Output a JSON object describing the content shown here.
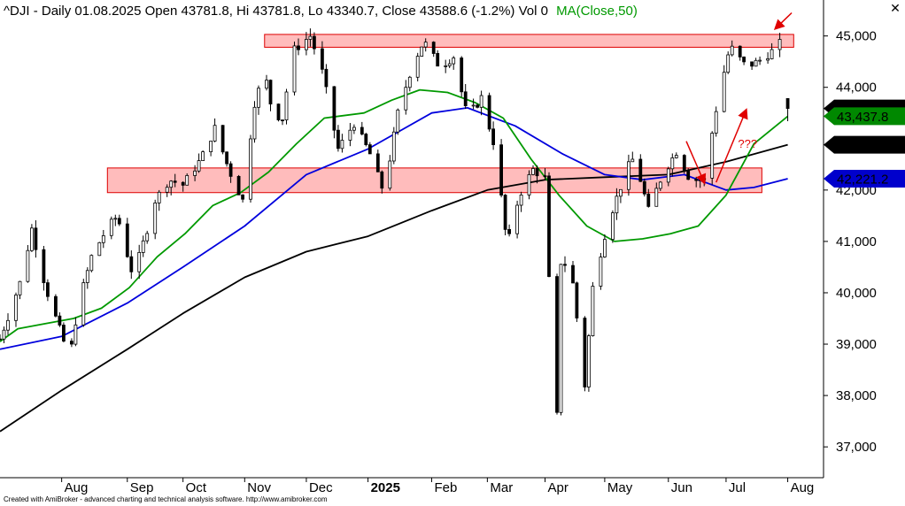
{
  "header": {
    "symbol_text": "^DJI - Daily 01.08.2025 Open 43781.8, Hi 43781.8, Lo 43340.7, Close 43588.6 (-1.2%) Vol 0",
    "ma_text": "MA(Close,50)"
  },
  "close_icon": "close-icon",
  "footer": "Created with AmiBroker - advanced charting and technical analysis software. http://www.amibroker.com",
  "colors": {
    "price": "#000000",
    "ma_short": "#009900",
    "ma_mid": "#0000dd",
    "ma_long": "#000000",
    "zone_fill": "#ffbcbc",
    "zone_stroke": "#dd0000",
    "annotation": "#e00000",
    "price_tag": "#000000",
    "ma_short_tag": "#008800",
    "ma_mid_tag": "#0000cc"
  },
  "chart_data": {
    "type": "candlestick",
    "title": "^DJI - Daily 01.08.2025 Open 43781.8, Hi 43781.8, Lo 43340.7, Close 43588.6 (-1.2%) Vol 0",
    "ylim": [
      36400,
      45700
    ],
    "grid": false,
    "y_ticks": [
      {
        "value": 45000,
        "label": "45,000"
      },
      {
        "value": 44000,
        "label": "44,000"
      },
      {
        "value": 42000,
        "label": "42,000"
      },
      {
        "value": 41000,
        "label": "41,000"
      },
      {
        "value": 40000,
        "label": "40,000"
      },
      {
        "value": 39000,
        "label": "39,000"
      },
      {
        "value": 38000,
        "label": "38,000"
      },
      {
        "value": 37000,
        "label": "37,000"
      }
    ],
    "x_ticks": [
      {
        "date": "2024-08-01",
        "label": "Aug",
        "bold": false
      },
      {
        "date": "2024-09-03",
        "label": "Sep",
        "bold": false
      },
      {
        "date": "2024-10-01",
        "label": "Oct",
        "bold": false
      },
      {
        "date": "2024-11-01",
        "label": "Nov",
        "bold": false
      },
      {
        "date": "2024-12-02",
        "label": "Dec",
        "bold": false
      },
      {
        "date": "2025-01-02",
        "label": "2025",
        "bold": true
      },
      {
        "date": "2025-02-03",
        "label": "Feb",
        "bold": false
      },
      {
        "date": "2025-03-03",
        "label": "Mar",
        "bold": false
      },
      {
        "date": "2025-04-01",
        "label": "Apr",
        "bold": false
      },
      {
        "date": "2025-05-01",
        "label": "May",
        "bold": false
      },
      {
        "date": "2025-06-02",
        "label": "Jun",
        "bold": false
      },
      {
        "date": "2025-07-01",
        "label": "Jul",
        "bold": false
      },
      {
        "date": "2025-08-01",
        "label": "Aug",
        "bold": false
      }
    ],
    "x_range": [
      "2024-07-01",
      "2025-08-19"
    ],
    "price_path": [
      [
        "2024-07-01",
        39100
      ],
      [
        "2024-07-12",
        40300
      ],
      [
        "2024-07-17",
        41250
      ],
      [
        "2024-07-24",
        40100
      ],
      [
        "2024-08-05",
        38700
      ],
      [
        "2024-08-09",
        39700
      ],
      [
        "2024-08-16",
        40700
      ],
      [
        "2024-08-23",
        41200
      ],
      [
        "2024-08-29",
        41500
      ],
      [
        "2024-09-06",
        40300
      ],
      [
        "2024-09-12",
        41100
      ],
      [
        "2024-09-17",
        41800
      ],
      [
        "2024-09-24",
        42200
      ],
      [
        "2024-10-01",
        42100
      ],
      [
        "2024-10-10",
        42600
      ],
      [
        "2024-10-17",
        43200
      ],
      [
        "2024-10-24",
        42400
      ],
      [
        "2024-10-31",
        41800
      ],
      [
        "2024-11-06",
        43700
      ],
      [
        "2024-11-11",
        44300
      ],
      [
        "2024-11-15",
        43500
      ],
      [
        "2024-11-20",
        43400
      ],
      [
        "2024-11-25",
        44700
      ],
      [
        "2024-12-04",
        45000
      ],
      [
        "2024-12-10",
        44300
      ],
      [
        "2024-12-18",
        42800
      ],
      [
        "2024-12-26",
        43300
      ],
      [
        "2025-01-03",
        42700
      ],
      [
        "2025-01-10",
        41950
      ],
      [
        "2025-01-17",
        43500
      ],
      [
        "2025-01-24",
        44400
      ],
      [
        "2025-01-30",
        44900
      ],
      [
        "2025-02-07",
        44400
      ],
      [
        "2025-02-14",
        44600
      ],
      [
        "2025-02-21",
        43400
      ],
      [
        "2025-02-28",
        43800
      ],
      [
        "2025-03-07",
        42800
      ],
      [
        "2025-03-13",
        40900
      ],
      [
        "2025-03-19",
        41900
      ],
      [
        "2025-03-26",
        42400
      ],
      [
        "2025-04-02",
        42200
      ],
      [
        "2025-04-04",
        38300
      ],
      [
        "2025-04-07",
        37600
      ],
      [
        "2025-04-09",
        40600
      ],
      [
        "2025-04-14",
        40500
      ],
      [
        "2025-04-21",
        38200
      ],
      [
        "2025-04-25",
        40100
      ],
      [
        "2025-05-02",
        41300
      ],
      [
        "2025-05-12",
        42400
      ],
      [
        "2025-05-16",
        42650
      ],
      [
        "2025-05-23",
        41600
      ],
      [
        "2025-05-30",
        42300
      ],
      [
        "2025-06-06",
        42750
      ],
      [
        "2025-06-13",
        42200
      ],
      [
        "2025-06-20",
        42200
      ],
      [
        "2025-06-27",
        43800
      ],
      [
        "2025-07-03",
        44800
      ],
      [
        "2025-07-11",
        44400
      ],
      [
        "2025-07-17",
        44500
      ],
      [
        "2025-07-24",
        44700
      ],
      [
        "2025-07-28",
        44850
      ],
      [
        "2025-07-31",
        44100
      ],
      [
        "2025-08-01",
        43588.6
      ]
    ],
    "candle_dates": {
      "start": "2024-07-01",
      "end": "2025-08-01",
      "interval_days": 2,
      "gap": [
        "2025-07-31",
        "2025-07-31"
      ]
    },
    "last_candle": {
      "date": "2025-08-01",
      "open": 43781.8,
      "high": 43781.8,
      "low": 43340.7,
      "close": 43588.6
    },
    "series": [
      {
        "name": "MA(Close,50)",
        "color": "#009900",
        "points": [
          [
            "2024-07-01",
            39050
          ],
          [
            "2024-07-10",
            39300
          ],
          [
            "2024-07-24",
            39400
          ],
          [
            "2024-08-07",
            39500
          ],
          [
            "2024-08-21",
            39700
          ],
          [
            "2024-09-04",
            40100
          ],
          [
            "2024-09-18",
            40700
          ],
          [
            "2024-10-02",
            41150
          ],
          [
            "2024-10-16",
            41700
          ],
          [
            "2024-10-30",
            41950
          ],
          [
            "2024-11-13",
            42350
          ],
          [
            "2024-11-27",
            42900
          ],
          [
            "2024-12-11",
            43400
          ],
          [
            "2024-12-31",
            43500
          ],
          [
            "2025-01-14",
            43750
          ],
          [
            "2025-01-28",
            43950
          ],
          [
            "2025-02-11",
            43900
          ],
          [
            "2025-02-25",
            43700
          ],
          [
            "2025-03-11",
            43400
          ],
          [
            "2025-03-25",
            42600
          ],
          [
            "2025-04-08",
            41900
          ],
          [
            "2025-04-22",
            41300
          ],
          [
            "2025-05-06",
            41000
          ],
          [
            "2025-05-20",
            41050
          ],
          [
            "2025-06-03",
            41150
          ],
          [
            "2025-06-17",
            41300
          ],
          [
            "2025-07-01",
            41900
          ],
          [
            "2025-07-15",
            42900
          ],
          [
            "2025-08-01",
            43437.8
          ]
        ]
      },
      {
        "name": "",
        "color": "#0000dd",
        "points": [
          [
            "2024-07-01",
            38900
          ],
          [
            "2024-08-01",
            39150
          ],
          [
            "2024-09-03",
            39800
          ],
          [
            "2024-10-01",
            40500
          ],
          [
            "2024-11-01",
            41300
          ],
          [
            "2024-12-02",
            42300
          ],
          [
            "2025-01-02",
            42800
          ],
          [
            "2025-02-03",
            43500
          ],
          [
            "2025-02-21",
            43600
          ],
          [
            "2025-03-17",
            43250
          ],
          [
            "2025-04-10",
            42700
          ],
          [
            "2025-05-01",
            42300
          ],
          [
            "2025-05-20",
            42200
          ],
          [
            "2025-06-10",
            42300
          ],
          [
            "2025-07-01",
            42000
          ],
          [
            "2025-07-15",
            42050
          ],
          [
            "2025-08-01",
            42221.2
          ]
        ]
      },
      {
        "name": "",
        "color": "#000000",
        "points": [
          [
            "2024-07-01",
            37300
          ],
          [
            "2024-08-01",
            38100
          ],
          [
            "2024-09-03",
            38900
          ],
          [
            "2024-10-01",
            39600
          ],
          [
            "2024-11-01",
            40300
          ],
          [
            "2024-12-02",
            40800
          ],
          [
            "2025-01-02",
            41100
          ],
          [
            "2025-02-03",
            41600
          ],
          [
            "2025-03-03",
            42000
          ],
          [
            "2025-04-01",
            42200
          ],
          [
            "2025-05-01",
            42250
          ],
          [
            "2025-06-02",
            42300
          ],
          [
            "2025-07-01",
            42550
          ],
          [
            "2025-08-01",
            42882.4
          ]
        ]
      }
    ],
    "zones": [
      {
        "name": "upper-resistance-zone",
        "x0": "2024-11-11",
        "x1": "2025-08-04",
        "y0": 44780,
        "y1": 45030
      },
      {
        "name": "lower-support-zone",
        "x0": "2024-08-24",
        "x1": "2025-07-19",
        "y0": 41950,
        "y1": 42430
      }
    ],
    "annotations": {
      "question_marks": {
        "text": "???",
        "date": "2025-07-07",
        "value": 42820
      },
      "arrows": [
        {
          "name": "down-arrow-top",
          "from": [
            "2025-08-03",
            45450
          ],
          "to": [
            "2025-07-26",
            45150
          ]
        },
        {
          "name": "down-arrow-pullback",
          "from": [
            "2025-06-11",
            42950
          ],
          "to": [
            "2025-06-20",
            42150
          ]
        },
        {
          "name": "up-arrow-bounce",
          "from": [
            "2025-06-26",
            42150
          ],
          "to": [
            "2025-07-11",
            43550
          ]
        }
      ]
    },
    "price_labels": [
      {
        "name": "price-tag-close",
        "text": "43,588.6",
        "value": 43588.6,
        "color": "#000000"
      },
      {
        "name": "price-tag-ma50",
        "text": "43,437.8",
        "value": 43437.8,
        "color": "#008800"
      },
      {
        "name": "price-tag-long-ma",
        "text": "42,882.4",
        "value": 42882.4,
        "color": "#000000"
      },
      {
        "name": "price-tag-mid-ma",
        "text": "42,221.2",
        "value": 42221.2,
        "color": "#0000cc"
      }
    ]
  }
}
